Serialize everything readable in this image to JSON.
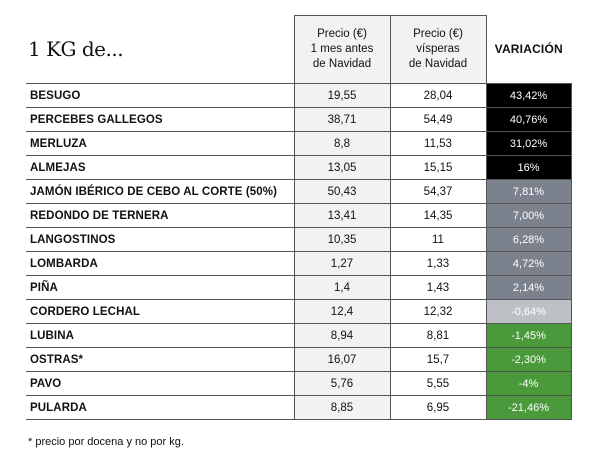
{
  "chart_data": {
    "type": "table",
    "title": "1 KG de...",
    "columns": [
      "Precio (€)|1 mes antes|de Navidad",
      "Precio (€)|vísperas|de Navidad",
      "VARIACIÓN"
    ],
    "rows": [
      {
        "name": "BESUGO",
        "p1": "19,55",
        "p2": "28,04",
        "var": "43,42%",
        "bg": "#000000",
        "fg": "#ffffff"
      },
      {
        "name": "PERCEBES GALLEGOS",
        "p1": "38,71",
        "p2": "54,49",
        "var": "40,76%",
        "bg": "#000000",
        "fg": "#ffffff"
      },
      {
        "name": "MERLUZA",
        "p1": "8,8",
        "p2": "11,53",
        "var": "31,02%",
        "bg": "#000000",
        "fg": "#ffffff"
      },
      {
        "name": "ALMEJAS",
        "p1": "13,05",
        "p2": "15,15",
        "var": "16%",
        "bg": "#000000",
        "fg": "#ffffff"
      },
      {
        "name": "JAMÓN IBÉRICO DE CEBO AL CORTE (50%)",
        "p1": "50,43",
        "p2": "54,37",
        "var": "7,81%",
        "bg": "#7b828d",
        "fg": "#ffffff"
      },
      {
        "name": "REDONDO DE TERNERA",
        "p1": "13,41",
        "p2": "14,35",
        "var": "7,00%",
        "bg": "#7b828d",
        "fg": "#ffffff"
      },
      {
        "name": "LANGOSTINOS",
        "p1": "10,35",
        "p2": "11",
        "var": "6,28%",
        "bg": "#7b828d",
        "fg": "#ffffff"
      },
      {
        "name": "LOMBARDA",
        "p1": "1,27",
        "p2": "1,33",
        "var": "4,72%",
        "bg": "#7b828d",
        "fg": "#ffffff"
      },
      {
        "name": "PIÑA",
        "p1": "1,4",
        "p2": "1,43",
        "var": "2,14%",
        "bg": "#7b828d",
        "fg": "#ffffff"
      },
      {
        "name": "CORDERO LECHAL",
        "p1": "12,4",
        "p2": "12,32",
        "var": "-0,64%",
        "bg": "#bdc1c6",
        "fg": "#ffffff"
      },
      {
        "name": "LUBINA",
        "p1": "8,94",
        "p2": "8,81",
        "var": "-1,45%",
        "bg": "#4a9a3c",
        "fg": "#ffffff"
      },
      {
        "name": "OSTRAS*",
        "p1": "16,07",
        "p2": "15,7",
        "var": "-2,30%",
        "bg": "#4a9a3c",
        "fg": "#ffffff"
      },
      {
        "name": "PAVO",
        "p1": "5,76",
        "p2": "5,55",
        "var": "-4%",
        "bg": "#4a9a3c",
        "fg": "#ffffff"
      },
      {
        "name": "PULARDA",
        "p1": "8,85",
        "p2": "6,95",
        "var": "-21,46%",
        "bg": "#4a9a3c",
        "fg": "#ffffff"
      }
    ],
    "footnote": "* precio por docena y no por kg."
  }
}
